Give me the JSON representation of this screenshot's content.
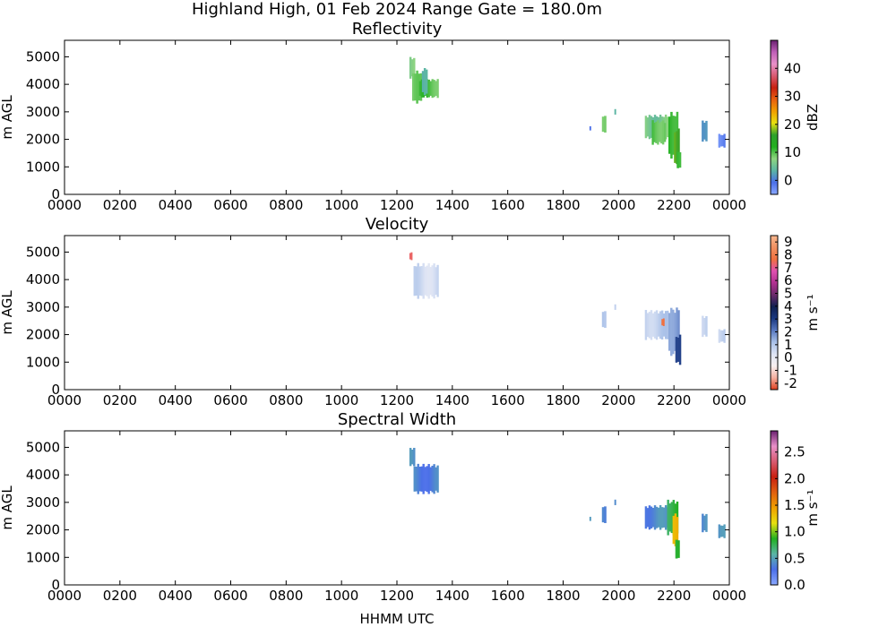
{
  "figure": {
    "title": "Highland High, 01 Feb 2024 Range Gate = 180.0m",
    "xlabel": "HHMM UTC"
  },
  "chart_data": [
    {
      "type": "heatmap",
      "title": "Reflectivity",
      "ylabel": "m AGL",
      "xlabel": "",
      "xticks": [
        "0000",
        "0200",
        "0400",
        "0600",
        "0800",
        "1000",
        "1200",
        "1400",
        "1600",
        "1800",
        "2000",
        "2200",
        "0000"
      ],
      "xlim_hours": [
        0,
        24
      ],
      "yticks": [
        0,
        1000,
        2000,
        3000,
        4000,
        5000
      ],
      "ylim": [
        0,
        5600
      ],
      "grid": false,
      "colorbar": {
        "label": "dBZ",
        "range": [
          -5,
          50
        ],
        "ticks": [
          0,
          10,
          20,
          30,
          40
        ],
        "tick_labels": [
          "0",
          "10",
          "20",
          "30",
          "40"
        ],
        "stops": [
          "#8aa8ff",
          "#4b6fe8",
          "#5bb5a5",
          "#8ed480",
          "#22b020",
          "#2ea02a",
          "#e8e010",
          "#f0a000",
          "#e86010",
          "#c82010",
          "#d85a70",
          "#e890c8",
          "#c060b8",
          "#6a2070"
        ]
      },
      "cells": [
        {
          "t0": 12.45,
          "t1": 12.65,
          "h0": 4200,
          "h1": 5000,
          "v": 6
        },
        {
          "t0": 12.55,
          "t1": 12.9,
          "h0": 3300,
          "h1": 4500,
          "v": 8
        },
        {
          "t0": 12.8,
          "t1": 13.5,
          "h0": 3500,
          "h1": 4200,
          "v": 10
        },
        {
          "t0": 12.9,
          "t1": 13.1,
          "h0": 3600,
          "h1": 4600,
          "v": 2
        },
        {
          "t0": 18.95,
          "t1": 19.0,
          "h0": 2300,
          "h1": 2500,
          "v": -2
        },
        {
          "t0": 19.4,
          "t1": 19.55,
          "h0": 2200,
          "h1": 2900,
          "v": 7
        },
        {
          "t0": 19.85,
          "t1": 19.9,
          "h0": 2900,
          "h1": 3100,
          "v": 2
        },
        {
          "t0": 20.95,
          "t1": 21.8,
          "h0": 2000,
          "h1": 2900,
          "v": 6
        },
        {
          "t0": 21.2,
          "t1": 21.7,
          "h0": 1800,
          "h1": 2700,
          "v": 10
        },
        {
          "t0": 21.8,
          "t1": 22.15,
          "h0": 1300,
          "h1": 3000,
          "v": 12
        },
        {
          "t0": 22.0,
          "t1": 22.2,
          "h0": 1000,
          "h1": 2400,
          "v": 18
        },
        {
          "t0": 22.1,
          "t1": 22.25,
          "h0": 900,
          "h1": 1600,
          "v": 12
        },
        {
          "t0": 23.0,
          "t1": 23.2,
          "h0": 1900,
          "h1": 2700,
          "v": 3
        },
        {
          "t0": 23.6,
          "t1": 23.85,
          "h0": 1700,
          "h1": 2200,
          "v": -2
        }
      ]
    },
    {
      "type": "heatmap",
      "title": "Velocity",
      "ylabel": "m AGL",
      "xlabel": "",
      "xticks": [
        "0000",
        "0200",
        "0400",
        "0600",
        "0800",
        "1000",
        "1200",
        "1400",
        "1600",
        "1800",
        "2000",
        "2200",
        "0000"
      ],
      "xlim_hours": [
        0,
        24
      ],
      "yticks": [
        0,
        1000,
        2000,
        3000,
        4000,
        5000
      ],
      "ylim": [
        0,
        5600
      ],
      "grid": false,
      "colorbar": {
        "label": "m s⁻¹",
        "range": [
          -2.5,
          9.5
        ],
        "ticks": [
          -2,
          -1,
          0,
          1,
          2,
          3,
          4,
          5,
          6,
          7,
          8,
          9
        ],
        "tick_labels": [
          "-2",
          "-1",
          "0",
          "1",
          "2",
          "3",
          "4",
          "5",
          "6",
          "7",
          "8",
          "9"
        ],
        "stops": [
          "#e04020",
          "#f4b0a0",
          "#f8f0f0",
          "#dde4f4",
          "#a8c0e8",
          "#5878c0",
          "#1a3880",
          "#102050",
          "#6a2a6a",
          "#b03090",
          "#e050b0",
          "#f07040",
          "#f09060",
          "#f8b890"
        ]
      },
      "cells": [
        {
          "t0": 12.45,
          "t1": 12.55,
          "h0": 4700,
          "h1": 5000,
          "v": 7
        },
        {
          "t0": 12.6,
          "t1": 13.5,
          "h0": 3300,
          "h1": 4600,
          "v": 0.5
        },
        {
          "t0": 19.4,
          "t1": 19.55,
          "h0": 2200,
          "h1": 2900,
          "v": 0.7
        },
        {
          "t0": 19.85,
          "t1": 19.9,
          "h0": 2900,
          "h1": 3100,
          "v": 0.5
        },
        {
          "t0": 20.95,
          "t1": 21.8,
          "h0": 1800,
          "h1": 2900,
          "v": 0.8
        },
        {
          "t0": 21.55,
          "t1": 21.65,
          "h0": 2300,
          "h1": 2600,
          "v": 8
        },
        {
          "t0": 21.8,
          "t1": 22.2,
          "h0": 1200,
          "h1": 3000,
          "v": 1.8
        },
        {
          "t0": 22.05,
          "t1": 22.25,
          "h0": 900,
          "h1": 2000,
          "v": 3.2
        },
        {
          "t0": 23.0,
          "t1": 23.2,
          "h0": 1900,
          "h1": 2700,
          "v": 0.8
        },
        {
          "t0": 23.6,
          "t1": 23.85,
          "h0": 1700,
          "h1": 2200,
          "v": 0.6
        }
      ]
    },
    {
      "type": "heatmap",
      "title": "Spectral Width",
      "ylabel": "m AGL",
      "xlabel": "HHMM UTC",
      "xticks": [
        "0000",
        "0200",
        "0400",
        "0600",
        "0800",
        "1000",
        "1200",
        "1400",
        "1600",
        "1800",
        "2000",
        "2200",
        "0000"
      ],
      "xlim_hours": [
        0,
        24
      ],
      "yticks": [
        0,
        1000,
        2000,
        3000,
        4000,
        5000
      ],
      "ylim": [
        0,
        5600
      ],
      "grid": false,
      "colorbar": {
        "label": "m s⁻¹",
        "range": [
          0,
          2.9
        ],
        "ticks": [
          0,
          0.5,
          1.0,
          1.5,
          2.0,
          2.5
        ],
        "tick_labels": [
          "0.0",
          "0.5",
          "1.0",
          "1.5",
          "2.0",
          "2.5"
        ],
        "stops": [
          "#8aa8ff",
          "#4b6fe8",
          "#5bb5a5",
          "#22b020",
          "#e8e010",
          "#f0a000",
          "#e06010",
          "#c82010",
          "#d85a70",
          "#e890c8",
          "#6a2070"
        ]
      },
      "cells": [
        {
          "t0": 12.45,
          "t1": 12.65,
          "h0": 4300,
          "h1": 5000,
          "v": 0.4
        },
        {
          "t0": 12.6,
          "t1": 13.5,
          "h0": 3300,
          "h1": 4400,
          "v": 0.35
        },
        {
          "t0": 18.95,
          "t1": 19.0,
          "h0": 2300,
          "h1": 2500,
          "v": 0.4
        },
        {
          "t0": 19.4,
          "t1": 19.55,
          "h0": 2200,
          "h1": 2900,
          "v": 0.35
        },
        {
          "t0": 19.85,
          "t1": 19.9,
          "h0": 2900,
          "h1": 3100,
          "v": 0.4
        },
        {
          "t0": 20.95,
          "t1": 21.8,
          "h0": 2000,
          "h1": 2900,
          "v": 0.4
        },
        {
          "t0": 21.75,
          "t1": 22.15,
          "h0": 1800,
          "h1": 3100,
          "v": 0.8
        },
        {
          "t0": 21.95,
          "t1": 22.15,
          "h0": 1400,
          "h1": 2600,
          "v": 1.4
        },
        {
          "t0": 22.05,
          "t1": 22.2,
          "h0": 900,
          "h1": 1700,
          "v": 0.9
        },
        {
          "t0": 23.0,
          "t1": 23.2,
          "h0": 1900,
          "h1": 2600,
          "v": 0.4
        },
        {
          "t0": 23.6,
          "t1": 23.85,
          "h0": 1700,
          "h1": 2200,
          "v": 0.4
        }
      ]
    }
  ]
}
